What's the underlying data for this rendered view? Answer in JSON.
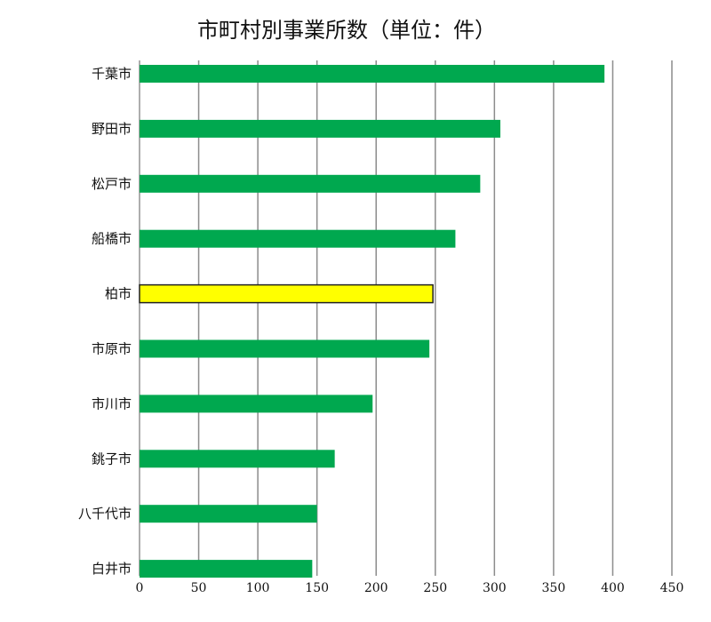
{
  "chart_data": {
    "type": "bar",
    "orientation": "horizontal",
    "title": "市町村別事業所数（単位：件）",
    "xlabel": "",
    "ylabel": "",
    "categories": [
      "千葉市",
      "野田市",
      "松戸市",
      "船橋市",
      "柏市",
      "市原市",
      "市川市",
      "銚子市",
      "八千代市",
      "白井市"
    ],
    "values": [
      393,
      305,
      288,
      267,
      248,
      245,
      197,
      165,
      150,
      146
    ],
    "highlight": {
      "category": "柏市",
      "bar_color": "#ffff00",
      "label_color": "#ff0000"
    },
    "bar_color": "#00a84f",
    "xlim": [
      0,
      450
    ],
    "xticks": [
      0,
      50,
      100,
      150,
      200,
      250,
      300,
      350,
      400,
      450
    ],
    "grid": true
  }
}
